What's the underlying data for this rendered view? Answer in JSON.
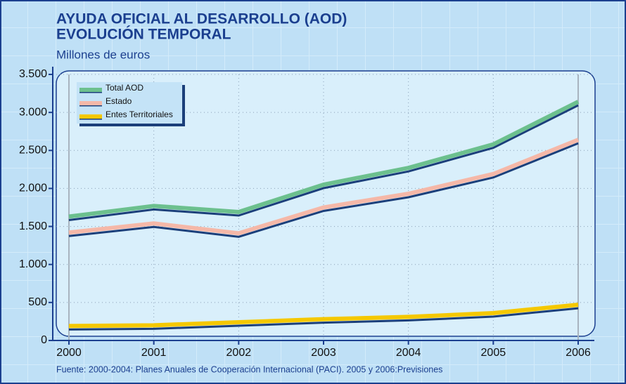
{
  "chart_data": {
    "type": "line",
    "title": "AYUDA OFICIAL AL DESARROLLO (AOD)",
    "subtitle": "EVOLUCIÓN TEMPORAL",
    "y_label": "Millones de euros",
    "source": "Fuente: 2000-2004: Planes Anuales de Cooperación Internacional (PACI). 2005 y 2006:Previsiones",
    "categories": [
      "2000",
      "2001",
      "2002",
      "2003",
      "2004",
      "2005",
      "2006"
    ],
    "series": [
      {
        "name": "Total AOD",
        "color": "#6cc08e",
        "values": [
          1630,
          1770,
          1690,
          2050,
          2270,
          2580,
          3140
        ]
      },
      {
        "name": "Estado",
        "color": "#f5b8a8",
        "values": [
          1420,
          1540,
          1410,
          1750,
          1930,
          2190,
          2640
        ]
      },
      {
        "name": "Entes Territoriales",
        "color": "#f5c800",
        "values": [
          190,
          200,
          240,
          280,
          310,
          360,
          470
        ]
      }
    ],
    "ylim": [
      0,
      3500
    ],
    "yticks": [
      0,
      500,
      {
        "value": 1000,
        "label": "1.000"
      },
      {
        "value": 1500,
        "label": "1.500"
      },
      {
        "value": 2000,
        "label": "2.000"
      },
      {
        "value": 2500,
        "label": "2.500"
      },
      {
        "value": 3000,
        "label": "3.000"
      },
      {
        "value": 3500,
        "label": "3.500"
      }
    ],
    "grid": true,
    "legend": "top-left"
  }
}
